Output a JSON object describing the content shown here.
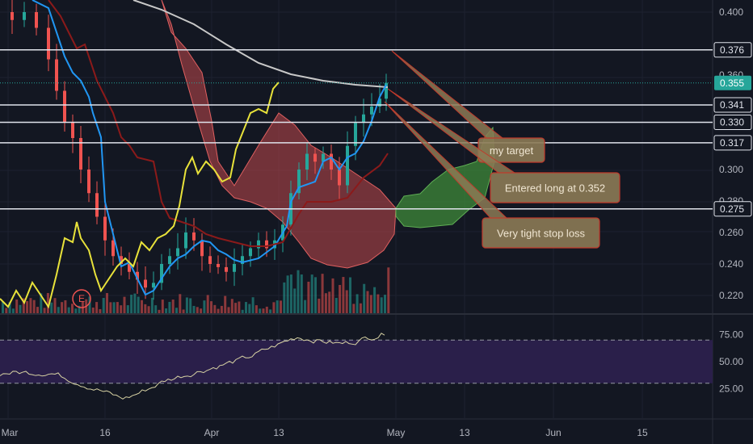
{
  "chart_data": {
    "type": "candlestick",
    "price_axis": {
      "ticks": [
        "0.400",
        "0.360",
        "0.300",
        "0.280",
        "0.260",
        "0.240",
        "0.220"
      ],
      "ylim": [
        0.21,
        0.405
      ]
    },
    "price_markers": [
      {
        "label": "0.376",
        "value": 0.376
      },
      {
        "label": "0.341",
        "value": 0.341
      },
      {
        "label": "0.330",
        "value": 0.33
      },
      {
        "label": "0.317",
        "value": 0.317
      },
      {
        "label": "0.275",
        "value": 0.275
      }
    ],
    "current_price": {
      "label": "0.355",
      "value": 0.355,
      "color": "#26a69a"
    },
    "rsi_axis": {
      "ticks": [
        "75.00",
        "50.00",
        "25.00"
      ],
      "ylim": [
        5,
        95
      ],
      "band": [
        30,
        70
      ]
    },
    "time_axis": {
      "ticks": [
        "Mar",
        "16",
        "Apr",
        "13",
        "May",
        "13",
        "Jun",
        "15"
      ]
    },
    "earnings_marker": "E",
    "annotations": [
      {
        "text": "my target"
      },
      {
        "text": "Entered long at 0.352"
      },
      {
        "text": "Very tight stop loss"
      }
    ],
    "colors": {
      "background": "#131722",
      "up": "#26a69a",
      "down": "#ef5350",
      "cloud_red": "#c1484c",
      "cloud_green": "#3f8a3a",
      "tenkan": "#2196f3",
      "kijun": "#8b1a1a",
      "chikou": "#e8e23a",
      "ma": "#c8c8c8",
      "rsi_band": "#2a1f4a",
      "rsi_line": "#d8d3a4"
    }
  }
}
